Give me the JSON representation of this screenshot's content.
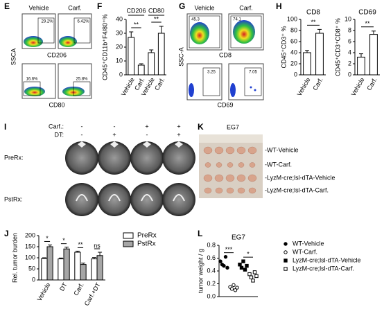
{
  "panels": {
    "E": {
      "letter": "E",
      "columns": [
        "Vehicle",
        "Carf."
      ],
      "percents": [
        "29.2%",
        "6.42%",
        "16.6%",
        "25.8%"
      ],
      "y_axis": "SSCA",
      "x_axes": [
        "CD206",
        "CD80"
      ]
    },
    "G": {
      "letter": "G",
      "columns": [
        "Vehicle",
        "Carf."
      ],
      "percents": [
        "45.3",
        "74.1",
        "3.25",
        "7.05"
      ],
      "y_axis": "SSC-A",
      "x_axes": [
        "CD8",
        "CD69"
      ]
    },
    "F": {
      "letter": "F"
    },
    "H": {
      "letter": "H"
    },
    "I": {
      "letter": "I",
      "row_titles": [
        "Carf.:",
        "DT:"
      ],
      "signs": [
        [
          "-",
          "-"
        ],
        [
          "-",
          "+"
        ],
        [
          "+",
          "-"
        ],
        [
          "+",
          "+"
        ]
      ],
      "image_rows": [
        "PreRx:",
        "PstRx:"
      ]
    },
    "K": {
      "letter": "K",
      "title": "EG7",
      "labels": [
        "-WT-Vehicle",
        "-WT-Carf.",
        "-LyzM-cre;lsl-dTA-Vehicle",
        "-LyzM-cre;lsl-dTA-Carf."
      ]
    },
    "J": {
      "letter": "J"
    },
    "L": {
      "letter": "L"
    }
  },
  "chart_data": [
    {
      "type": "bar",
      "groups": [
        "CD206",
        "CD80"
      ],
      "categories": [
        "Vehicle",
        "Carf.",
        "Vehicle",
        "Carf."
      ],
      "values": [
        27,
        7,
        16,
        30
      ],
      "errors": [
        4,
        1,
        2,
        5
      ],
      "color": "#ffffff",
      "ylabel": "CD45⁺CD11b⁺F4/80⁺%",
      "ylim": [
        0,
        40
      ],
      "yticks": [
        0,
        10,
        20,
        30,
        40
      ],
      "annotations": [
        "**",
        "**"
      ]
    },
    {
      "type": "bar",
      "title": "CD8",
      "categories": [
        "Vehicle",
        "Carf."
      ],
      "values": [
        40,
        75
      ],
      "errors": [
        4,
        7
      ],
      "color": "#ffffff",
      "ylabel": "CD45⁺CD3⁺ %",
      "ylim": [
        0,
        100
      ],
      "yticks": [
        0,
        20,
        40,
        60,
        80,
        100
      ],
      "annotations": [
        "**"
      ]
    },
    {
      "type": "bar",
      "title": "CD69",
      "categories": [
        "Vehicle",
        "Carf."
      ],
      "values": [
        3.2,
        7.3
      ],
      "errors": [
        0.6,
        0.6
      ],
      "color": "#ffffff",
      "ylabel": "CD45⁺CD3⁺CD8⁺ %",
      "ylim": [
        0,
        10
      ],
      "yticks": [
        0,
        2,
        4,
        6,
        8,
        10
      ],
      "annotations": [
        "**"
      ]
    },
    {
      "type": "grouped",
      "categories": [
        "Vehicle",
        "DT",
        "Carf.",
        "Carf.+DT"
      ],
      "series": [
        {
          "name": "PreRx",
          "color": "#ffffff",
          "values": [
            97,
            95,
            125,
            95
          ],
          "errors": [
            3,
            4,
            5,
            6
          ]
        },
        {
          "name": "PstRx",
          "color": "#a6a6a6",
          "values": [
            150,
            140,
            70,
            110
          ],
          "errors": [
            8,
            8,
            6,
            15
          ]
        }
      ],
      "ylabel": "Rel. tumor burden",
      "ylim": [
        0,
        200
      ],
      "yticks": [
        0,
        50,
        100,
        150,
        200
      ],
      "annotations": [
        "*",
        "*",
        "**",
        "ns"
      ]
    },
    {
      "type": "dot",
      "title": "EG7",
      "ylabel": "tumor weight / g",
      "ylim": [
        0,
        0.8
      ],
      "yticks": [
        {
          "value": 0,
          "label": "0.0"
        },
        0.2,
        0.4,
        0.6,
        0.8
      ],
      "series": [
        {
          "name": "WT-Vehicle",
          "marker": "circle",
          "values": [
            0.55,
            0.5,
            0.48,
            0.62,
            0.45
          ]
        },
        {
          "name": "WT-Carf.",
          "marker": "circle-open",
          "values": [
            0.15,
            0.12,
            0.18,
            0.1,
            0.14
          ]
        },
        {
          "name": "LyzM-cre;lsl-dTA-Vehicle",
          "marker": "square",
          "values": [
            0.5,
            0.45,
            0.55,
            0.42,
            0.48
          ]
        },
        {
          "name": "LyzM-cre;lsl-dTA-Carf.",
          "marker": "square-open",
          "values": [
            0.35,
            0.3,
            0.25,
            0.38,
            0.32
          ]
        }
      ],
      "annotations": [
        "***",
        "*"
      ]
    }
  ]
}
